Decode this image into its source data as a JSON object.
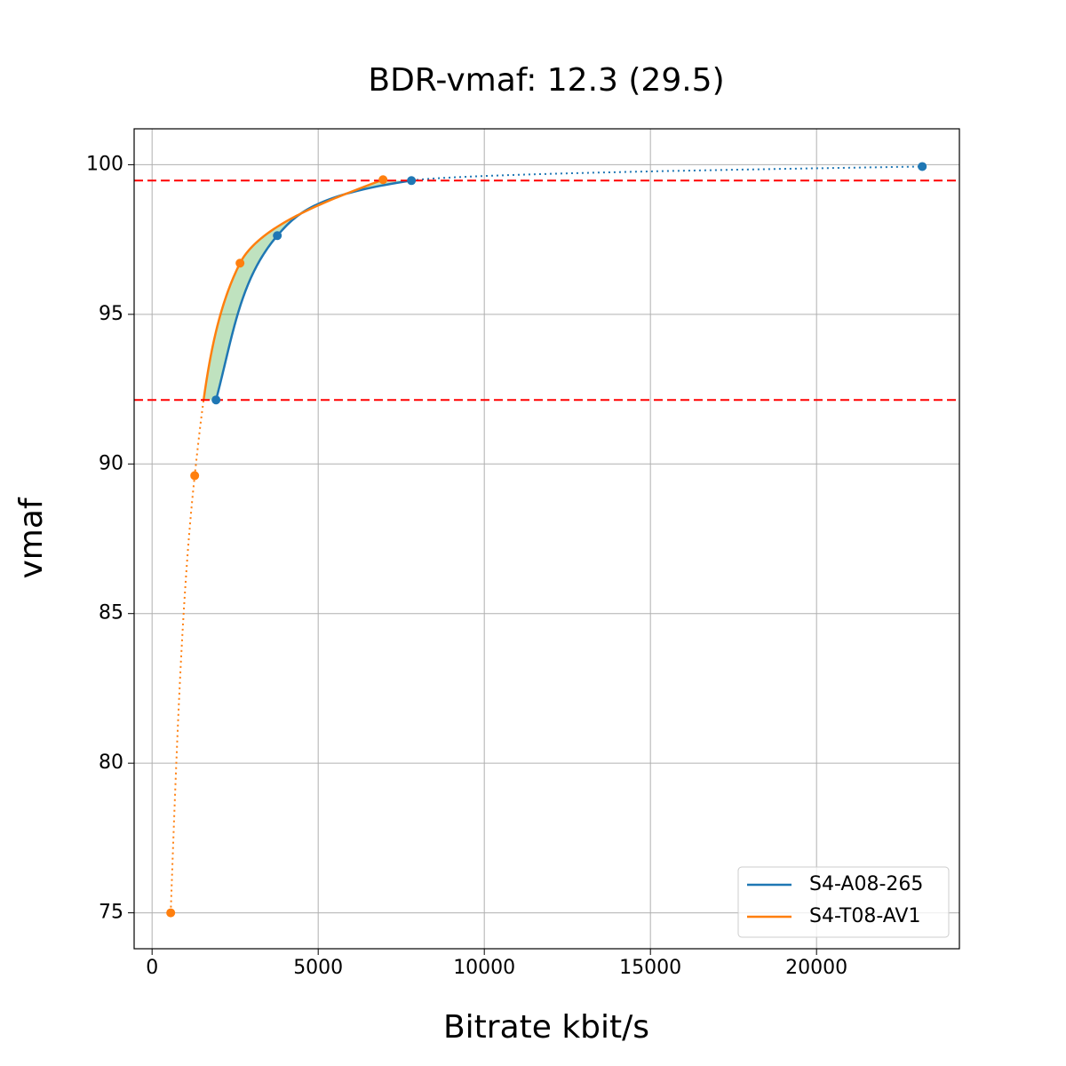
{
  "chart_data": {
    "type": "line",
    "title": "BDR-vmaf: 12.3 (29.5)",
    "x_label": "Bitrate kbit/s",
    "y_label": "vmaf",
    "series": [
      {
        "name": "S4-A08-265",
        "color": "#1f77b4",
        "x": [
          1925,
          3770,
          7807,
          23182
        ],
        "values": [
          92.14,
          97.63,
          99.47,
          99.94
        ]
      },
      {
        "name": "S4-T08-AV1",
        "color": "#ff7f0e",
        "x": [
          561,
          1283,
          2647,
          6952
        ],
        "values": [
          75.0,
          89.61,
          96.71,
          99.5
        ]
      }
    ],
    "hlines": [
      92.14,
      99.47
    ],
    "hline_color": "#ff0000",
    "fill_color": "#2ca02c",
    "xlim": [
      -540,
      24300
    ],
    "ylim": [
      73.8,
      101.2
    ],
    "xticks": [
      0,
      5000,
      10000,
      15000,
      20000
    ],
    "yticks": [
      75,
      80,
      85,
      90,
      95,
      100
    ],
    "grid": true,
    "legend": "lower right"
  }
}
